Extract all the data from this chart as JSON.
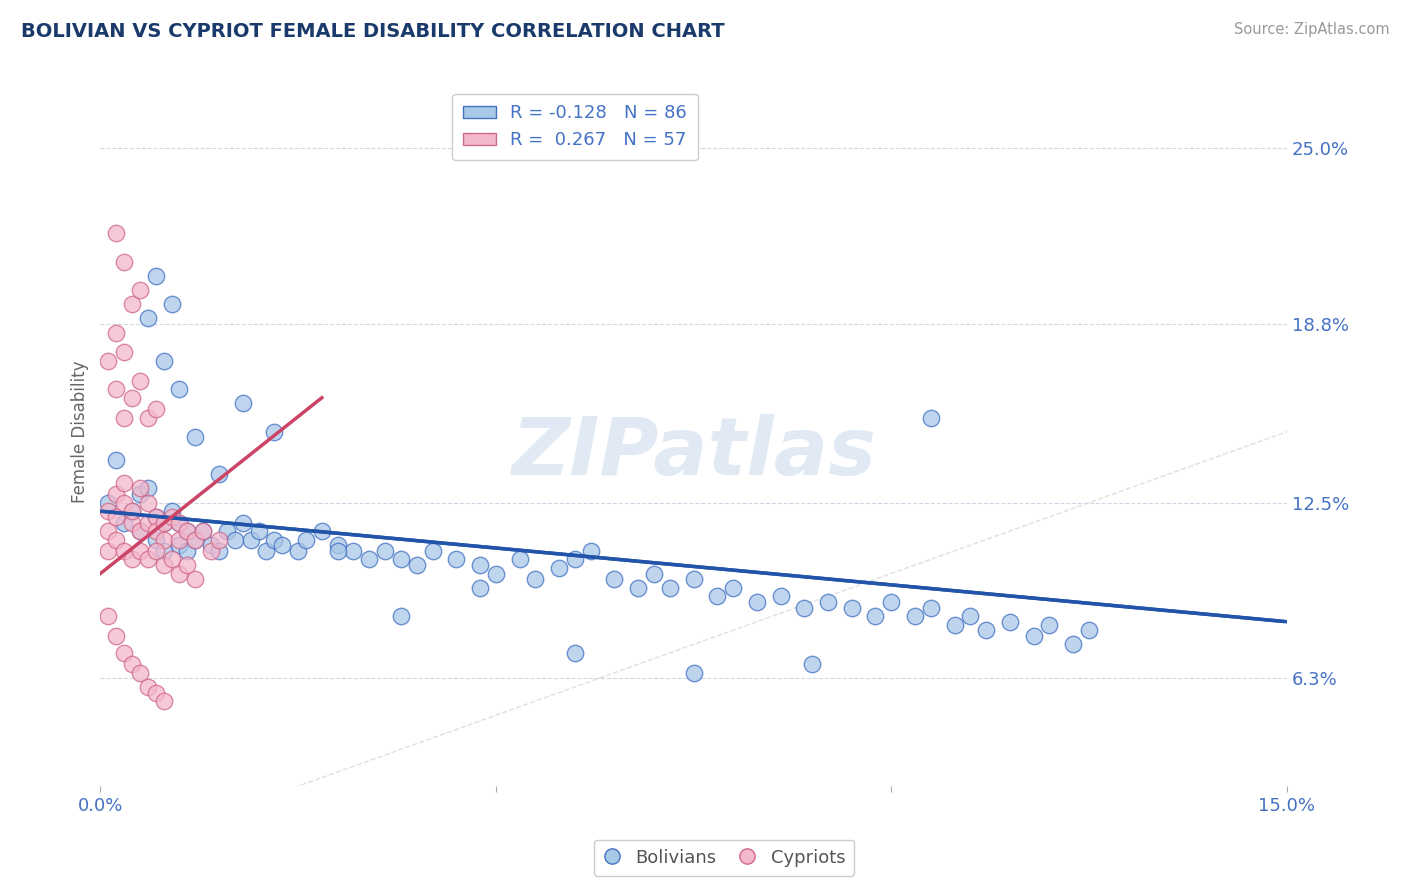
{
  "title": "BOLIVIAN VS CYPRIOT FEMALE DISABILITY CORRELATION CHART",
  "source": "Source: ZipAtlas.com",
  "ylabel_label": "Female Disability",
  "xlim": [
    0.0,
    0.15
  ],
  "ylim": [
    0.025,
    0.275
  ],
  "xticks": [
    0.0,
    0.05,
    0.1,
    0.15
  ],
  "xtick_labels": [
    "0.0%",
    "",
    "",
    "15.0%"
  ],
  "ytick_right": [
    0.063,
    0.125,
    0.188,
    0.25
  ],
  "ytick_right_labels": [
    "6.3%",
    "12.5%",
    "18.8%",
    "25.0%"
  ],
  "blue_fill": "#a8c8e8",
  "blue_edge": "#4472c4",
  "pink_fill": "#f4b8cc",
  "pink_edge": "#d06888",
  "blue_line_color": "#2255aa",
  "pink_line_color": "#cc4466",
  "diag_color": "#d8d8d8",
  "grid_color": "#d0d8e8",
  "title_color": "#1a3a6b",
  "axis_label_color": "#4472c4",
  "ylabel_color": "#666666",
  "watermark_text": "ZIPatlas",
  "watermark_color": "#c8d8ec",
  "legend_R_blue": "R = -0.128",
  "legend_N_blue": "N = 86",
  "legend_R_pink": "R =  0.267",
  "legend_N_pink": "N = 57",
  "blue_trend_x0": 0.0,
  "blue_trend_x1": 0.15,
  "blue_trend_y0": 0.122,
  "blue_trend_y1": 0.083,
  "pink_trend_x0": 0.0,
  "pink_trend_x1": 0.028,
  "pink_trend_y0": 0.1,
  "pink_trend_y1": 0.162,
  "bolivians_x": [
    0.001,
    0.002,
    0.003,
    0.004,
    0.005,
    0.005,
    0.006,
    0.007,
    0.007,
    0.008,
    0.008,
    0.009,
    0.01,
    0.01,
    0.011,
    0.011,
    0.012,
    0.013,
    0.014,
    0.015,
    0.016,
    0.017,
    0.018,
    0.019,
    0.02,
    0.021,
    0.022,
    0.023,
    0.025,
    0.026,
    0.028,
    0.03,
    0.032,
    0.034,
    0.036,
    0.038,
    0.04,
    0.042,
    0.045,
    0.048,
    0.05,
    0.053,
    0.055,
    0.058,
    0.06,
    0.062,
    0.065,
    0.068,
    0.07,
    0.072,
    0.075,
    0.078,
    0.08,
    0.083,
    0.086,
    0.089,
    0.092,
    0.095,
    0.098,
    0.1,
    0.103,
    0.105,
    0.108,
    0.11,
    0.112,
    0.115,
    0.118,
    0.12,
    0.123,
    0.125,
    0.006,
    0.007,
    0.008,
    0.009,
    0.01,
    0.012,
    0.015,
    0.018,
    0.022,
    0.03,
    0.038,
    0.048,
    0.06,
    0.075,
    0.09,
    0.105
  ],
  "bolivians_y": [
    0.125,
    0.14,
    0.118,
    0.122,
    0.128,
    0.115,
    0.13,
    0.12,
    0.112,
    0.118,
    0.108,
    0.122,
    0.118,
    0.11,
    0.115,
    0.108,
    0.112,
    0.115,
    0.11,
    0.108,
    0.115,
    0.112,
    0.118,
    0.112,
    0.115,
    0.108,
    0.112,
    0.11,
    0.108,
    0.112,
    0.115,
    0.11,
    0.108,
    0.105,
    0.108,
    0.105,
    0.103,
    0.108,
    0.105,
    0.103,
    0.1,
    0.105,
    0.098,
    0.102,
    0.105,
    0.108,
    0.098,
    0.095,
    0.1,
    0.095,
    0.098,
    0.092,
    0.095,
    0.09,
    0.092,
    0.088,
    0.09,
    0.088,
    0.085,
    0.09,
    0.085,
    0.088,
    0.082,
    0.085,
    0.08,
    0.083,
    0.078,
    0.082,
    0.075,
    0.08,
    0.19,
    0.205,
    0.175,
    0.195,
    0.165,
    0.148,
    0.135,
    0.16,
    0.15,
    0.108,
    0.085,
    0.095,
    0.072,
    0.065,
    0.068,
    0.155
  ],
  "cypriots_x": [
    0.001,
    0.001,
    0.002,
    0.002,
    0.003,
    0.003,
    0.004,
    0.004,
    0.005,
    0.005,
    0.006,
    0.006,
    0.007,
    0.007,
    0.008,
    0.008,
    0.009,
    0.01,
    0.01,
    0.011,
    0.012,
    0.013,
    0.014,
    0.015,
    0.001,
    0.002,
    0.003,
    0.004,
    0.005,
    0.006,
    0.007,
    0.008,
    0.009,
    0.01,
    0.011,
    0.012,
    0.002,
    0.003,
    0.004,
    0.005,
    0.006,
    0.007,
    0.002,
    0.003,
    0.004,
    0.005,
    0.001,
    0.002,
    0.003,
    0.001,
    0.002,
    0.003,
    0.004,
    0.005,
    0.006,
    0.007,
    0.008
  ],
  "cypriots_y": [
    0.122,
    0.115,
    0.128,
    0.12,
    0.132,
    0.125,
    0.118,
    0.122,
    0.13,
    0.115,
    0.118,
    0.125,
    0.12,
    0.115,
    0.118,
    0.112,
    0.12,
    0.118,
    0.112,
    0.115,
    0.112,
    0.115,
    0.108,
    0.112,
    0.108,
    0.112,
    0.108,
    0.105,
    0.108,
    0.105,
    0.108,
    0.103,
    0.105,
    0.1,
    0.103,
    0.098,
    0.185,
    0.178,
    0.162,
    0.168,
    0.155,
    0.158,
    0.22,
    0.21,
    0.195,
    0.2,
    0.175,
    0.165,
    0.155,
    0.085,
    0.078,
    0.072,
    0.068,
    0.065,
    0.06,
    0.058,
    0.055
  ]
}
